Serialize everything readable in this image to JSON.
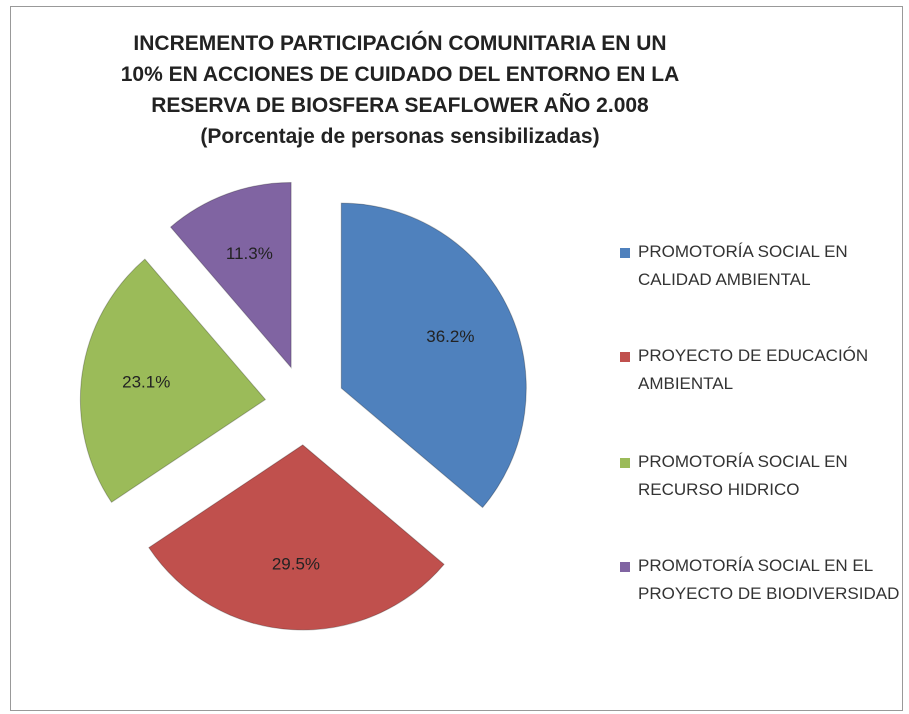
{
  "chart_data": {
    "type": "pie",
    "title": "INCREMENTO PARTICIPACIÓN COMUNITARIA EN UN 10% EN ACCIONES DE CUIDADO DEL ENTORNO EN LA RESERVA DE BIOSFERA SEAFLOWER AÑO 2.008",
    "subtitle": "(Porcentaje de personas sensibilizadas)",
    "categories": [
      "PROMOTORÍA SOCIAL EN CALIDAD AMBIENTAL",
      "PROYECTO DE EDUCACIÓN AMBIENTAL",
      "PROMOTORÍA SOCIAL EN RECURSO HIDRICO",
      "PROMOTORÍA SOCIAL EN EL PROYECTO DE BIODIVERSIDAD"
    ],
    "values": [
      36.2,
      29.5,
      23.1,
      11.3
    ],
    "value_labels": [
      "36.2%",
      "29.5%",
      "23.1%",
      "11.3%"
    ],
    "colors": [
      "#4f81bd",
      "#c0504d",
      "#9bbb59",
      "#8064a2"
    ],
    "legend": "right"
  }
}
